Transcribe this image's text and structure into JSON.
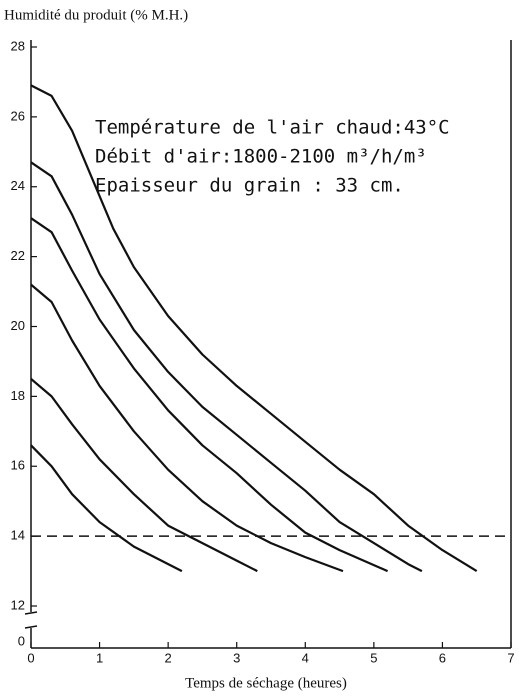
{
  "chart_data": {
    "type": "line",
    "title": "Humidité du produit (% M.H.)",
    "xlabel": "Temps de séchage (heures)",
    "annotations": [
      "Température de l'air chaud:43°C",
      "Débit d'air:1800-2100 m³/h/m³",
      "Epaisseur du grain : 33 cm."
    ],
    "xlim": [
      0,
      7
    ],
    "xticks": [
      0,
      1,
      2,
      3,
      4,
      5,
      6,
      7
    ],
    "ylim": [
      12,
      28
    ],
    "yticks": [
      12,
      14,
      16,
      18,
      20,
      22,
      24,
      26,
      28
    ],
    "y_break_tick": 0,
    "reference_line": 14,
    "color": "#111111",
    "series": [
      {
        "x": [
          0,
          0.3,
          0.6,
          0.9,
          1.2,
          1.5,
          2,
          2.5,
          3,
          3.5,
          4,
          4.5,
          5,
          5.5,
          6,
          6.5
        ],
        "values": [
          26.9,
          26.6,
          25.6,
          24.2,
          22.8,
          21.7,
          20.3,
          19.2,
          18.3,
          17.5,
          16.7,
          15.9,
          15.2,
          14.3,
          13.6,
          13.0
        ]
      },
      {
        "x": [
          0,
          0.3,
          0.6,
          1,
          1.5,
          2,
          2.5,
          3,
          3.5,
          4,
          4.5,
          5,
          5.5,
          5.7
        ],
        "values": [
          24.7,
          24.3,
          23.2,
          21.5,
          19.9,
          18.7,
          17.7,
          16.9,
          16.1,
          15.3,
          14.4,
          13.8,
          13.2,
          13.0
        ]
      },
      {
        "x": [
          0,
          0.3,
          0.6,
          1,
          1.5,
          2,
          2.5,
          3,
          3.5,
          4,
          4.5,
          5.2
        ],
        "values": [
          23.1,
          22.7,
          21.6,
          20.2,
          18.8,
          17.6,
          16.6,
          15.8,
          14.9,
          14.1,
          13.6,
          13.0
        ]
      },
      {
        "x": [
          0,
          0.3,
          0.6,
          1,
          1.5,
          2,
          2.5,
          3,
          3.5,
          4,
          4.55
        ],
        "values": [
          21.2,
          20.7,
          19.6,
          18.3,
          17.0,
          15.9,
          15.0,
          14.3,
          13.8,
          13.4,
          13.0
        ]
      },
      {
        "x": [
          0,
          0.3,
          0.6,
          1,
          1.5,
          2,
          2.5,
          3,
          3.3
        ],
        "values": [
          18.5,
          18.0,
          17.2,
          16.2,
          15.2,
          14.3,
          13.8,
          13.3,
          13.0
        ]
      },
      {
        "x": [
          0,
          0.3,
          0.6,
          1,
          1.5,
          2.2
        ],
        "values": [
          16.6,
          16.0,
          15.2,
          14.4,
          13.7,
          13.0
        ]
      }
    ]
  }
}
